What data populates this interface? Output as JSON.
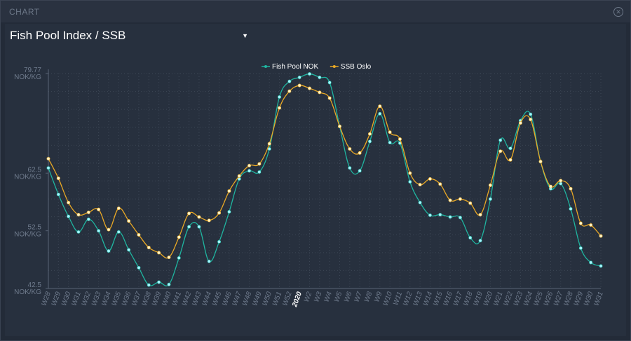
{
  "window": {
    "title": "CHART",
    "close_icon": "close-circle-icon"
  },
  "selector": {
    "value": "Fish Pool Index / SSB",
    "caret_icon": "caret-down-icon"
  },
  "chart_data": {
    "type": "line",
    "title": "",
    "xlabel": "",
    "ylabel": "",
    "legend_position": "top-center",
    "grid": true,
    "ylim": [
      42.5,
      79.77
    ],
    "y_ticks": [
      {
        "value": 79.77,
        "label": "79.77",
        "unit": "NOK/KG"
      },
      {
        "value": 62.5,
        "label": "62.5",
        "unit": "NOK/KG"
      },
      {
        "value": 52.5,
        "label": "52.5",
        "unit": "NOK/KG"
      },
      {
        "value": 42.5,
        "label": "42.5",
        "unit": "NOK/KG"
      }
    ],
    "categories": [
      "W28",
      "W29",
      "W30",
      "W31",
      "W32",
      "W33",
      "W34",
      "W35",
      "W36",
      "W37",
      "W38",
      "W39",
      "W40",
      "W41",
      "W42",
      "W43",
      "W44",
      "W45",
      "W46",
      "W47",
      "W48",
      "W49",
      "W50",
      "W51",
      "W52",
      "2020",
      "W2",
      "W3",
      "W4",
      "W5",
      "W6",
      "W7",
      "W8",
      "W9",
      "W10",
      "W11",
      "W12",
      "W13",
      "W14",
      "W15",
      "W16",
      "W17",
      "W18",
      "W19",
      "W20",
      "W21",
      "W22",
      "W23",
      "W24",
      "W25",
      "W26",
      "W27",
      "W28",
      "W29",
      "W30",
      "W31"
    ],
    "series": [
      {
        "name": "Fish Pool NOK",
        "color": "#1fb5a0",
        "values": [
          63.4,
          58.8,
          55.0,
          52.3,
          54.5,
          52.5,
          49.0,
          52.3,
          49.2,
          46.1,
          43.1,
          43.6,
          43.2,
          47.8,
          53.2,
          53.2,
          47.2,
          50.6,
          55.8,
          61.5,
          62.9,
          62.7,
          66.7,
          75.7,
          78.4,
          79.1,
          79.7,
          79.1,
          78.2,
          70.6,
          63.4,
          62.9,
          68.0,
          72.8,
          67.8,
          67.7,
          61.0,
          57.4,
          55.2,
          55.3,
          54.9,
          54.8,
          51.3,
          50.8,
          58.0,
          68.2,
          66.8,
          71.6,
          72.7,
          64.5,
          59.8,
          60.7,
          56.3,
          49.5,
          47.0,
          46.4
        ]
      },
      {
        "name": "SSB Oslo",
        "color": "#e9a825",
        "values": [
          65.0,
          61.6,
          57.4,
          55.3,
          55.7,
          56.2,
          52.7,
          56.4,
          54.2,
          51.8,
          49.6,
          48.7,
          47.9,
          51.4,
          55.5,
          54.9,
          54.3,
          55.6,
          59.4,
          62.0,
          63.8,
          64.1,
          67.6,
          73.8,
          76.7,
          77.7,
          77.2,
          76.5,
          75.5,
          70.6,
          66.7,
          66.0,
          69.3,
          74.1,
          69.6,
          68.4,
          62.5,
          60.5,
          61.5,
          60.6,
          57.8,
          58.0,
          57.3,
          55.3,
          60.4,
          66.3,
          64.8,
          71.2,
          71.8,
          64.5,
          60.2,
          61.2,
          59.8,
          53.8,
          53.5,
          51.6
        ]
      }
    ]
  }
}
